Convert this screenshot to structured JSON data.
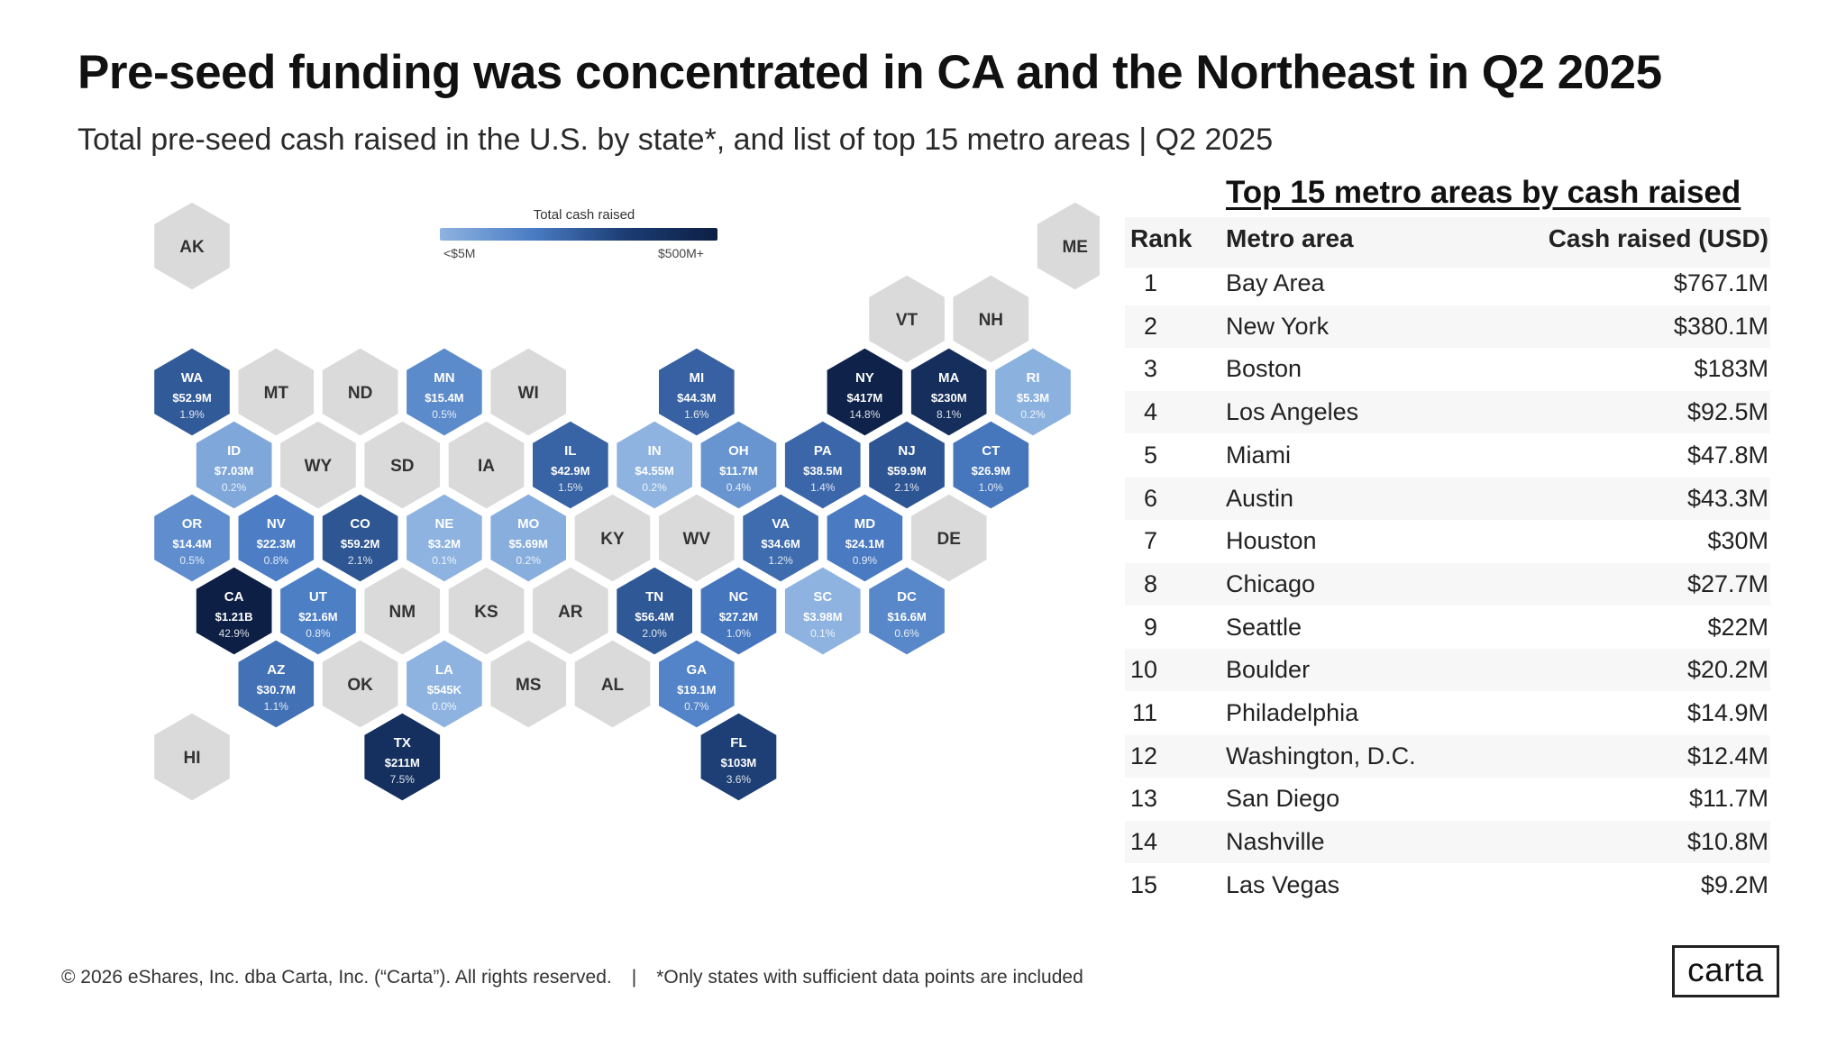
{
  "title": "Pre-seed funding was concentrated in CA and the Northeast in Q2 2025",
  "subtitle": "Total pre-seed cash raised in the U.S. by state*, and list of top 15 metro areas | Q2 2025",
  "legend": {
    "title": "Total cash raised",
    "low_label": "<$5M",
    "high_label": "$500M+"
  },
  "colors": {
    "no_data": "#dadada",
    "scale": [
      "#8eb3e0",
      "#4a7cc4",
      "#1c3d74",
      "#0d1f44"
    ]
  },
  "map_data": {
    "states": [
      {
        "code": "AK",
        "row": 0,
        "col": 0
      },
      {
        "code": "ME",
        "row": 0,
        "col": 10.5
      },
      {
        "code": "VT",
        "row": 1,
        "col": 8.5
      },
      {
        "code": "NH",
        "row": 1,
        "col": 9.5
      },
      {
        "code": "WA",
        "row": 2,
        "col": 0,
        "cash": "$52.9M",
        "pct": "1.9%",
        "value_m": 52.9
      },
      {
        "code": "MT",
        "row": 2,
        "col": 1
      },
      {
        "code": "ND",
        "row": 2,
        "col": 2
      },
      {
        "code": "MN",
        "row": 2,
        "col": 3,
        "cash": "$15.4M",
        "pct": "0.5%",
        "value_m": 15.4
      },
      {
        "code": "WI",
        "row": 2,
        "col": 4
      },
      {
        "code": "MI",
        "row": 2,
        "col": 6,
        "cash": "$44.3M",
        "pct": "1.6%",
        "value_m": 44.3
      },
      {
        "code": "NY",
        "row": 2,
        "col": 8,
        "cash": "$417M",
        "pct": "14.8%",
        "value_m": 417
      },
      {
        "code": "MA",
        "row": 2,
        "col": 9,
        "cash": "$230M",
        "pct": "8.1%",
        "value_m": 230
      },
      {
        "code": "RI",
        "row": 2,
        "col": 10,
        "cash": "$5.3M",
        "pct": "0.2%",
        "value_m": 5.3
      },
      {
        "code": "ID",
        "row": 3,
        "col": 0.5,
        "cash": "$7.03M",
        "pct": "0.2%",
        "value_m": 7.03
      },
      {
        "code": "WY",
        "row": 3,
        "col": 1.5
      },
      {
        "code": "SD",
        "row": 3,
        "col": 2.5
      },
      {
        "code": "IA",
        "row": 3,
        "col": 3.5
      },
      {
        "code": "IL",
        "row": 3,
        "col": 4.5,
        "cash": "$42.9M",
        "pct": "1.5%",
        "value_m": 42.9
      },
      {
        "code": "IN",
        "row": 3,
        "col": 5.5,
        "cash": "$4.55M",
        "pct": "0.2%",
        "value_m": 4.55
      },
      {
        "code": "OH",
        "row": 3,
        "col": 6.5,
        "cash": "$11.7M",
        "pct": "0.4%",
        "value_m": 11.7
      },
      {
        "code": "PA",
        "row": 3,
        "col": 7.5,
        "cash": "$38.5M",
        "pct": "1.4%",
        "value_m": 38.5
      },
      {
        "code": "NJ",
        "row": 3,
        "col": 8.5,
        "cash": "$59.9M",
        "pct": "2.1%",
        "value_m": 59.9
      },
      {
        "code": "CT",
        "row": 3,
        "col": 9.5,
        "cash": "$26.9M",
        "pct": "1.0%",
        "value_m": 26.9
      },
      {
        "code": "OR",
        "row": 4,
        "col": 0,
        "cash": "$14.4M",
        "pct": "0.5%",
        "value_m": 14.4
      },
      {
        "code": "NV",
        "row": 4,
        "col": 1,
        "cash": "$22.3M",
        "pct": "0.8%",
        "value_m": 22.3
      },
      {
        "code": "CO",
        "row": 4,
        "col": 2,
        "cash": "$59.2M",
        "pct": "2.1%",
        "value_m": 59.2
      },
      {
        "code": "NE",
        "row": 4,
        "col": 3,
        "cash": "$3.2M",
        "pct": "0.1%",
        "value_m": 3.2
      },
      {
        "code": "MO",
        "row": 4,
        "col": 4,
        "cash": "$5.69M",
        "pct": "0.2%",
        "value_m": 5.69
      },
      {
        "code": "KY",
        "row": 4,
        "col": 5
      },
      {
        "code": "WV",
        "row": 4,
        "col": 6
      },
      {
        "code": "VA",
        "row": 4,
        "col": 7,
        "cash": "$34.6M",
        "pct": "1.2%",
        "value_m": 34.6
      },
      {
        "code": "MD",
        "row": 4,
        "col": 8,
        "cash": "$24.1M",
        "pct": "0.9%",
        "value_m": 24.1
      },
      {
        "code": "DE",
        "row": 4,
        "col": 9
      },
      {
        "code": "CA",
        "row": 5,
        "col": 0.5,
        "cash": "$1.21B",
        "pct": "42.9%",
        "value_m": 1210
      },
      {
        "code": "UT",
        "row": 5,
        "col": 1.5,
        "cash": "$21.6M",
        "pct": "0.8%",
        "value_m": 21.6
      },
      {
        "code": "NM",
        "row": 5,
        "col": 2.5
      },
      {
        "code": "KS",
        "row": 5,
        "col": 3.5
      },
      {
        "code": "AR",
        "row": 5,
        "col": 4.5
      },
      {
        "code": "TN",
        "row": 5,
        "col": 5.5,
        "cash": "$56.4M",
        "pct": "2.0%",
        "value_m": 56.4
      },
      {
        "code": "NC",
        "row": 5,
        "col": 6.5,
        "cash": "$27.2M",
        "pct": "1.0%",
        "value_m": 27.2
      },
      {
        "code": "SC",
        "row": 5,
        "col": 7.5,
        "cash": "$3.98M",
        "pct": "0.1%",
        "value_m": 3.98
      },
      {
        "code": "DC",
        "row": 5,
        "col": 8.5,
        "cash": "$16.6M",
        "pct": "0.6%",
        "value_m": 16.6
      },
      {
        "code": "AZ",
        "row": 6,
        "col": 1,
        "cash": "$30.7M",
        "pct": "1.1%",
        "value_m": 30.7
      },
      {
        "code": "OK",
        "row": 6,
        "col": 2
      },
      {
        "code": "LA",
        "row": 6,
        "col": 3,
        "cash": "$545K",
        "pct": "0.0%",
        "value_m": 0.545
      },
      {
        "code": "MS",
        "row": 6,
        "col": 4
      },
      {
        "code": "AL",
        "row": 6,
        "col": 5
      },
      {
        "code": "GA",
        "row": 6,
        "col": 6,
        "cash": "$19.1M",
        "pct": "0.7%",
        "value_m": 19.1
      },
      {
        "code": "HI",
        "row": 7,
        "col": 0
      },
      {
        "code": "TX",
        "row": 7,
        "col": 2.5,
        "cash": "$211M",
        "pct": "7.5%",
        "value_m": 211
      },
      {
        "code": "FL",
        "row": 7,
        "col": 6.5,
        "cash": "$103M",
        "pct": "3.6%",
        "value_m": 103
      }
    ]
  },
  "table": {
    "title": "Top 15 metro areas by cash raised",
    "headers": {
      "rank": "Rank",
      "metro": "Metro area",
      "cash": "Cash raised (USD)"
    },
    "rows": [
      {
        "rank": "1",
        "metro": "Bay Area",
        "cash": "$767.1M"
      },
      {
        "rank": "2",
        "metro": "New York",
        "cash": "$380.1M"
      },
      {
        "rank": "3",
        "metro": "Boston",
        "cash": "$183M"
      },
      {
        "rank": "4",
        "metro": "Los Angeles",
        "cash": "$92.5M"
      },
      {
        "rank": "5",
        "metro": "Miami",
        "cash": "$47.8M"
      },
      {
        "rank": "6",
        "metro": "Austin",
        "cash": "$43.3M"
      },
      {
        "rank": "7",
        "metro": "Houston",
        "cash": "$30M"
      },
      {
        "rank": "8",
        "metro": "Chicago",
        "cash": "$27.7M"
      },
      {
        "rank": "9",
        "metro": "Seattle",
        "cash": "$22M"
      },
      {
        "rank": "10",
        "metro": "Boulder",
        "cash": "$20.2M"
      },
      {
        "rank": "11",
        "metro": "Philadelphia",
        "cash": "$14.9M"
      },
      {
        "rank": "12",
        "metro": "Washington, D.C.",
        "cash": "$12.4M"
      },
      {
        "rank": "13",
        "metro": "San Diego",
        "cash": "$11.7M"
      },
      {
        "rank": "14",
        "metro": "Nashville",
        "cash": "$10.8M"
      },
      {
        "rank": "15",
        "metro": "Las Vegas",
        "cash": "$9.2M"
      }
    ]
  },
  "footer": {
    "copyright": "© 2026 eShares, Inc. dba Carta, Inc. (“Carta”). All rights reserved.",
    "separator": "|",
    "note": "*Only states with sufficient data points are included"
  },
  "logo": "carta"
}
